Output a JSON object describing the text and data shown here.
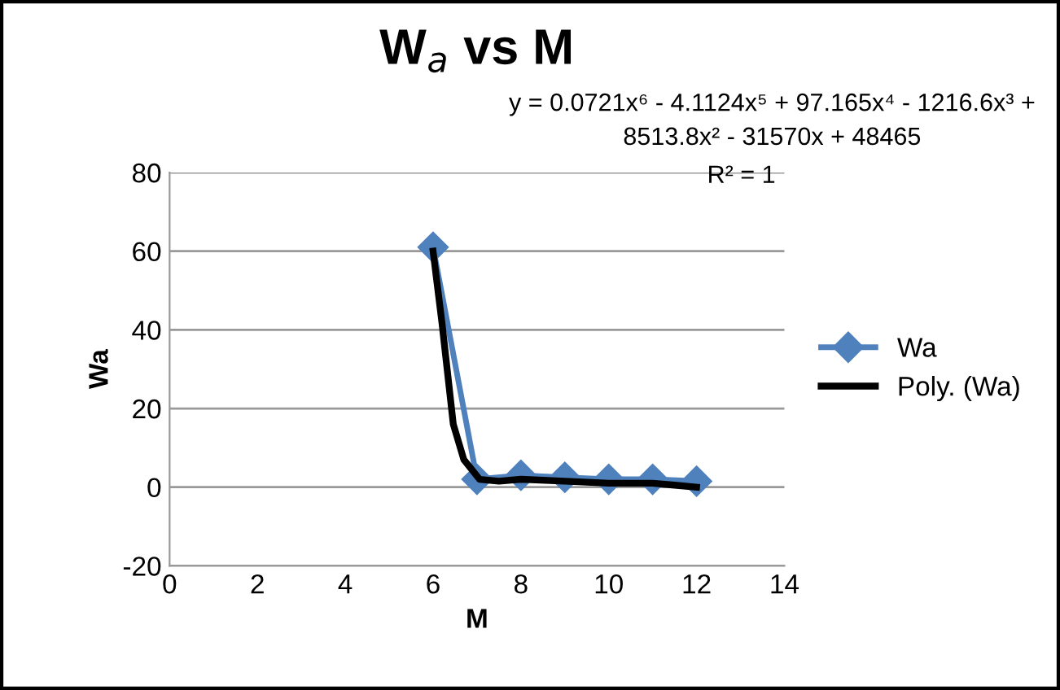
{
  "chart_data": {
    "type": "line",
    "title": "W$_{a}$ vs M",
    "xlabel": "M",
    "ylabel": "Wa",
    "annotations": [
      "y = 0.0721x⁶ - 4.1124x⁵ + 97.165x⁴ - 1216.6x³ +\n8513.8x² - 31570x + 48465",
      "R² = 1"
    ],
    "series": [
      {
        "name": "Wa",
        "color": "#4f81bd",
        "marker": "diamond",
        "x": [
          6,
          7,
          8,
          9,
          10,
          11,
          12
        ],
        "values": [
          61,
          2,
          3,
          2.5,
          2,
          2,
          1.5
        ]
      },
      {
        "name": "Poly. (Wa)",
        "color": "#000000",
        "marker": "none",
        "x": [
          6,
          6.2,
          6.46,
          6.7,
          7.06,
          7.5,
          8,
          9,
          10,
          11,
          11.5,
          12
        ],
        "values": [
          60,
          42,
          16,
          7,
          2,
          1.5,
          2,
          1.5,
          1,
          1,
          0.5,
          0
        ]
      }
    ],
    "xlim": [
      0,
      14
    ],
    "xticks": [
      0,
      2,
      4,
      6,
      8,
      10,
      12,
      14
    ],
    "ylim": [
      -20,
      80
    ],
    "yticks": [
      -20,
      0,
      20,
      40,
      60,
      80
    ],
    "grid": "y",
    "legend": "right",
    "line_style": "solid"
  }
}
